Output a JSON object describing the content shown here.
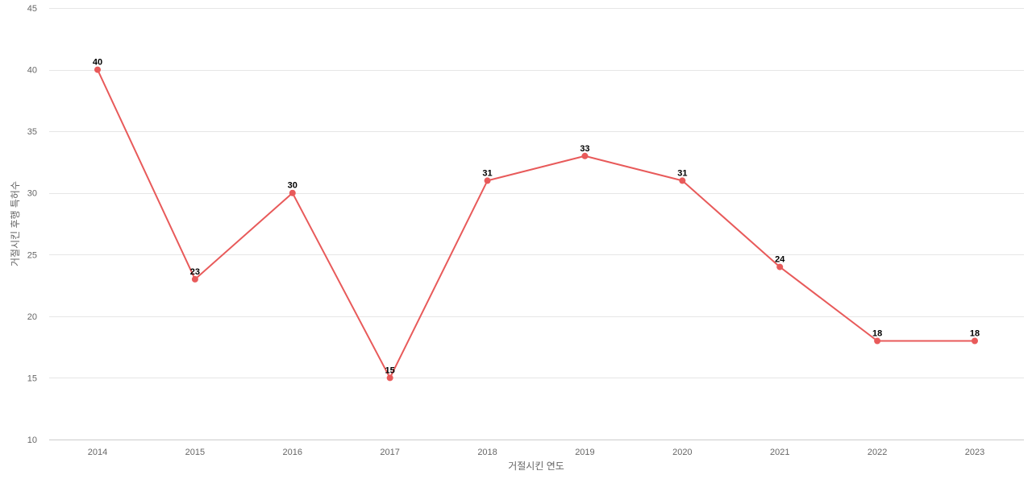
{
  "chart_data": {
    "type": "line",
    "title": "",
    "xlabel": "거절시킨 연도",
    "ylabel": "거절시킨 후행 특허수",
    "x": [
      "2014",
      "2015",
      "2016",
      "2017",
      "2018",
      "2019",
      "2020",
      "2021",
      "2022",
      "2023"
    ],
    "series": [
      {
        "values": [
          40,
          23,
          30,
          15,
          31,
          33,
          31,
          24,
          18,
          18
        ],
        "color": "#e85a5a"
      }
    ],
    "yticks": [
      10,
      15,
      20,
      25,
      30,
      35,
      40,
      45
    ],
    "ylim": [
      10,
      45
    ],
    "grid": true,
    "legend": "none"
  }
}
